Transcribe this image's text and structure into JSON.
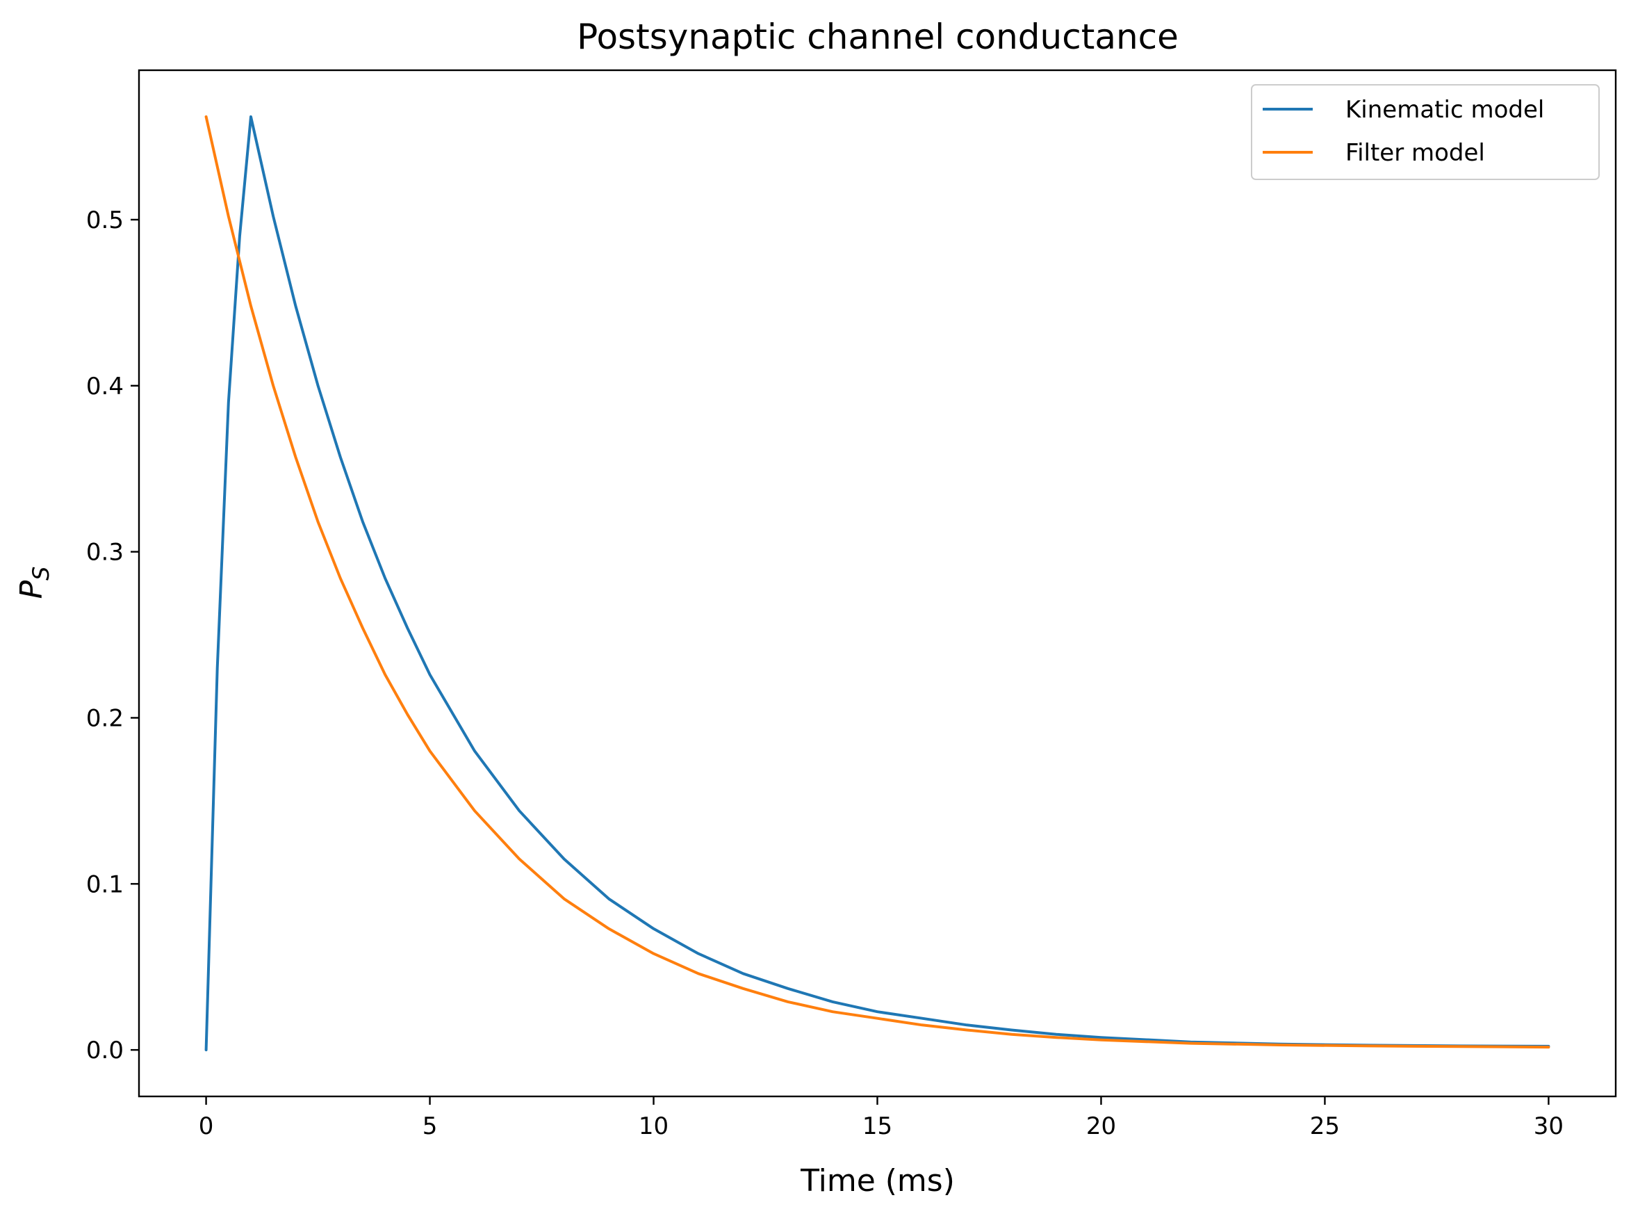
{
  "chart_data": {
    "type": "line",
    "title": "Postsynaptic channel conductance",
    "xlabel": "Time (ms)",
    "ylabel": "P",
    "ylabel_sub": "S",
    "xlim": [
      -1.5,
      31.5
    ],
    "ylim": [
      -0.028,
      0.59
    ],
    "xticks": [
      0,
      5,
      10,
      15,
      20,
      25,
      30
    ],
    "yticks": [
      0.0,
      0.1,
      0.2,
      0.3,
      0.4,
      0.5
    ],
    "xtick_labels": [
      "0",
      "5",
      "10",
      "15",
      "20",
      "25",
      "30"
    ],
    "ytick_labels": [
      "0.0",
      "0.1",
      "0.2",
      "0.3",
      "0.4",
      "0.5"
    ],
    "grid": false,
    "legend": "top-right",
    "series": [
      {
        "name": "Kinematic model",
        "color": "#1f77b4",
        "x": [
          0,
          0.25,
          0.5,
          0.75,
          1,
          1.5,
          2,
          2.5,
          3,
          3.5,
          4,
          4.5,
          5,
          6,
          7,
          8,
          9,
          10,
          11,
          12,
          13,
          14,
          15,
          16,
          17,
          18,
          19,
          20,
          22,
          24,
          26,
          28,
          30
        ],
        "y": [
          0.0,
          0.23,
          0.39,
          0.49,
          0.562,
          0.502,
          0.448,
          0.4,
          0.357,
          0.318,
          0.284,
          0.254,
          0.226,
          0.18,
          0.144,
          0.115,
          0.091,
          0.073,
          0.058,
          0.046,
          0.037,
          0.029,
          0.023,
          0.019,
          0.015,
          0.012,
          0.0094,
          0.0075,
          0.0048,
          0.0035,
          0.0028,
          0.0024,
          0.0022
        ]
      },
      {
        "name": "Filter model",
        "color": "#ff7f0e",
        "x": [
          0,
          0.5,
          1,
          1.5,
          2,
          2.5,
          3,
          3.5,
          4,
          4.5,
          5,
          6,
          7,
          8,
          9,
          10,
          11,
          12,
          13,
          14,
          15,
          16,
          17,
          18,
          19,
          20,
          22,
          24,
          26,
          28,
          30
        ],
        "y": [
          0.562,
          0.502,
          0.448,
          0.4,
          0.357,
          0.318,
          0.284,
          0.254,
          0.226,
          0.202,
          0.18,
          0.144,
          0.115,
          0.091,
          0.073,
          0.058,
          0.046,
          0.037,
          0.029,
          0.023,
          0.019,
          0.015,
          0.012,
          0.0094,
          0.0075,
          0.006,
          0.004,
          0.003,
          0.0024,
          0.002,
          0.0017
        ]
      }
    ]
  }
}
